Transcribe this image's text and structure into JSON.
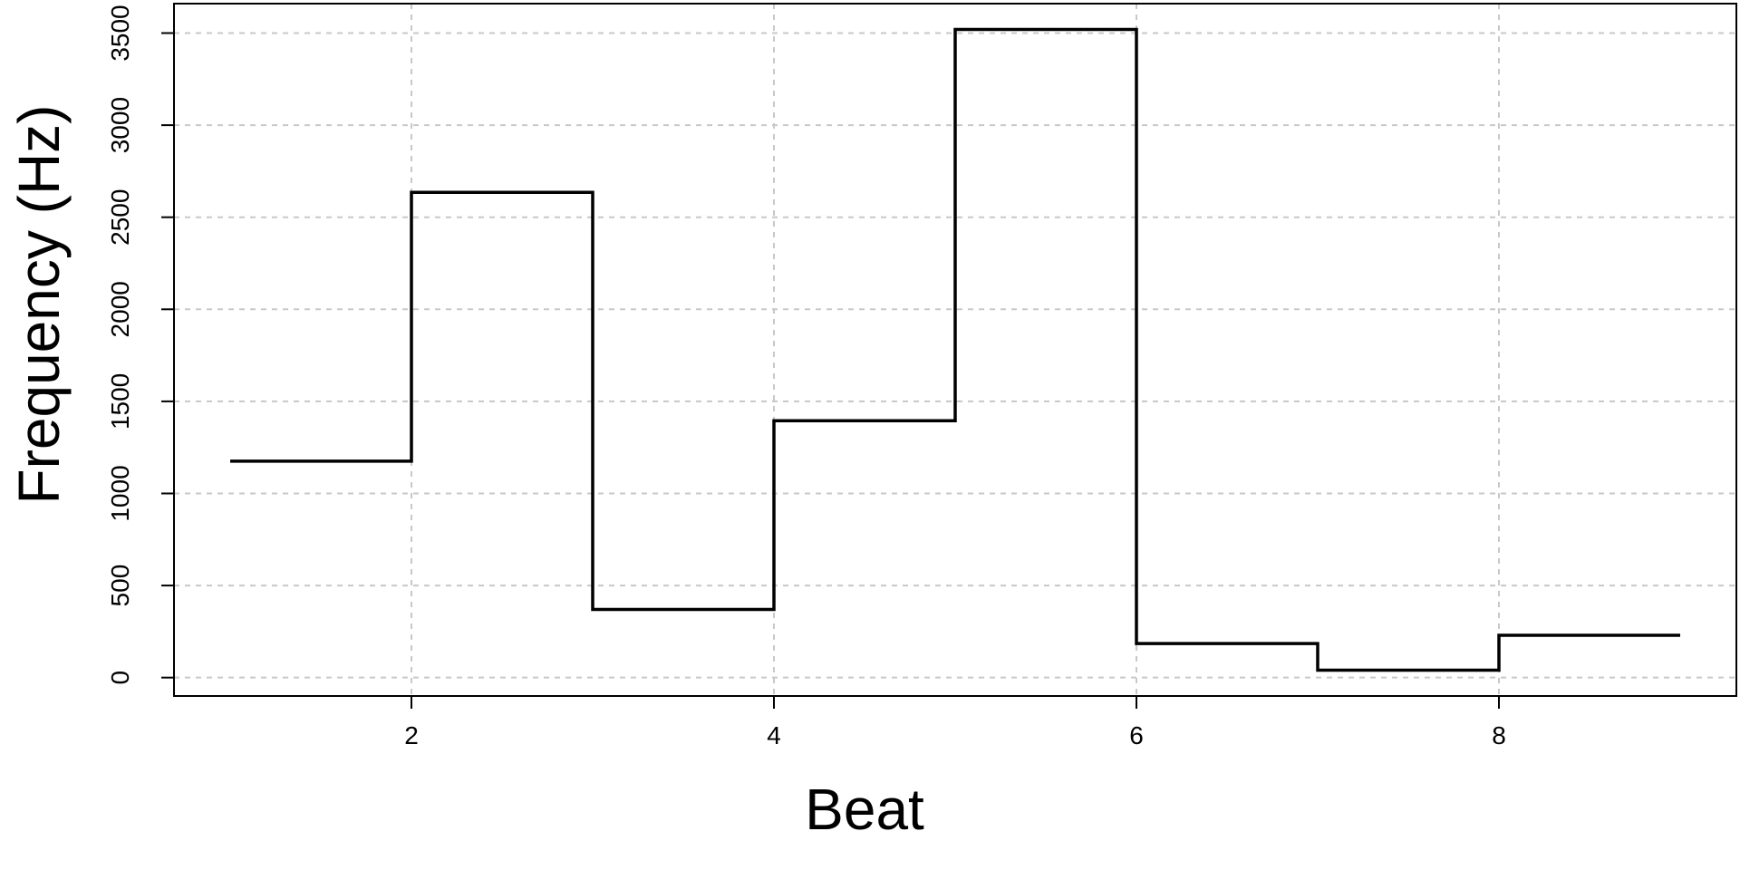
{
  "chart_data": {
    "type": "line",
    "style": "step",
    "xlabel": "Beat",
    "ylabel": "Frequency (Hz)",
    "xticks": [
      2,
      4,
      6,
      8
    ],
    "yticks": [
      0,
      500,
      1000,
      1500,
      2000,
      2500,
      3000,
      3500
    ],
    "xlim": [
      0.69,
      9.31
    ],
    "ylim": [
      -100,
      3660
    ],
    "grid": true,
    "series": [
      {
        "x": [
          1,
          2,
          3,
          4,
          5,
          6,
          7,
          8,
          9
        ],
        "y": [
          1175,
          2635,
          370,
          1395,
          3520,
          185,
          40,
          230,
          230
        ]
      }
    ]
  }
}
